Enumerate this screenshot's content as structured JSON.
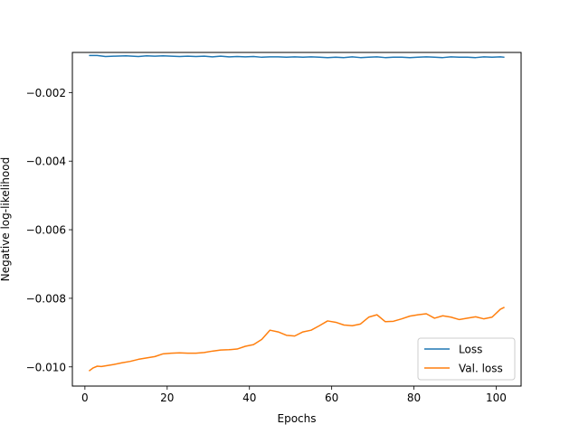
{
  "chart_data": {
    "type": "line",
    "xlabel": "Epochs",
    "ylabel": "Negative log-likelihood",
    "xlim": [
      -3.05,
      106.05
    ],
    "ylim": [
      -0.01056,
      -0.00083
    ],
    "xticks": [
      0,
      20,
      40,
      60,
      80,
      100
    ],
    "xtick_labels": [
      "0",
      "20",
      "40",
      "60",
      "80",
      "100"
    ],
    "yticks": [
      -0.002,
      -0.004,
      -0.006,
      -0.008,
      -0.01
    ],
    "ytick_labels": [
      "−0.002",
      "−0.004",
      "−0.006",
      "−0.008",
      "−0.010"
    ],
    "grid": false,
    "legend_position": "lower-right",
    "series": [
      {
        "name": "Loss",
        "color": "#1f77b4",
        "x": [
          1,
          3,
          5,
          7,
          10,
          13,
          15,
          17,
          19,
          21,
          23,
          25,
          27,
          29,
          31,
          33,
          35,
          37,
          39,
          41,
          43,
          45,
          47,
          49,
          51,
          53,
          55,
          57,
          59,
          61,
          63,
          65,
          67,
          69,
          71,
          73,
          75,
          77,
          79,
          81,
          83,
          85,
          87,
          89,
          91,
          93,
          95,
          97,
          99,
          101,
          102
        ],
        "y": [
          -0.00092,
          -0.00092,
          -0.00095,
          -0.00094,
          -0.00093,
          -0.00095,
          -0.00093,
          -0.00094,
          -0.00093,
          -0.00094,
          -0.00095,
          -0.00094,
          -0.00095,
          -0.00094,
          -0.00096,
          -0.00094,
          -0.00096,
          -0.00095,
          -0.00096,
          -0.00095,
          -0.00097,
          -0.00096,
          -0.00096,
          -0.00097,
          -0.00096,
          -0.00097,
          -0.00096,
          -0.00097,
          -0.00098,
          -0.00097,
          -0.00098,
          -0.00096,
          -0.00098,
          -0.00097,
          -0.00096,
          -0.00098,
          -0.00097,
          -0.00097,
          -0.00098,
          -0.00097,
          -0.00096,
          -0.00097,
          -0.00098,
          -0.00096,
          -0.00097,
          -0.00097,
          -0.00098,
          -0.00096,
          -0.00097,
          -0.00096,
          -0.00097
        ]
      },
      {
        "name": "Val. loss",
        "color": "#ff7f0e",
        "x": [
          1,
          2,
          3,
          4,
          5,
          7,
          9,
          11,
          13,
          15,
          17,
          19,
          21,
          23,
          25,
          27,
          29,
          31,
          33,
          35,
          37,
          39,
          41,
          43,
          45,
          47,
          49,
          51,
          53,
          55,
          57,
          59,
          61,
          63,
          65,
          67,
          69,
          71,
          73,
          75,
          77,
          79,
          81,
          83,
          85,
          87,
          89,
          91,
          93,
          95,
          97,
          99,
          101,
          102
        ],
        "y": [
          -0.01012,
          -0.01003,
          -0.00998,
          -0.00999,
          -0.00997,
          -0.00993,
          -0.00988,
          -0.00984,
          -0.00978,
          -0.00974,
          -0.0097,
          -0.00962,
          -0.0096,
          -0.00959,
          -0.0096,
          -0.0096,
          -0.00958,
          -0.00954,
          -0.00951,
          -0.0095,
          -0.00948,
          -0.0094,
          -0.00935,
          -0.0092,
          -0.00893,
          -0.00898,
          -0.00908,
          -0.0091,
          -0.00898,
          -0.00893,
          -0.0088,
          -0.00866,
          -0.0087,
          -0.00878,
          -0.0088,
          -0.00875,
          -0.00855,
          -0.00848,
          -0.00868,
          -0.00867,
          -0.0086,
          -0.00852,
          -0.00848,
          -0.00845,
          -0.00858,
          -0.00851,
          -0.00855,
          -0.00862,
          -0.00858,
          -0.00854,
          -0.0086,
          -0.00855,
          -0.00832,
          -0.00826
        ]
      }
    ]
  }
}
